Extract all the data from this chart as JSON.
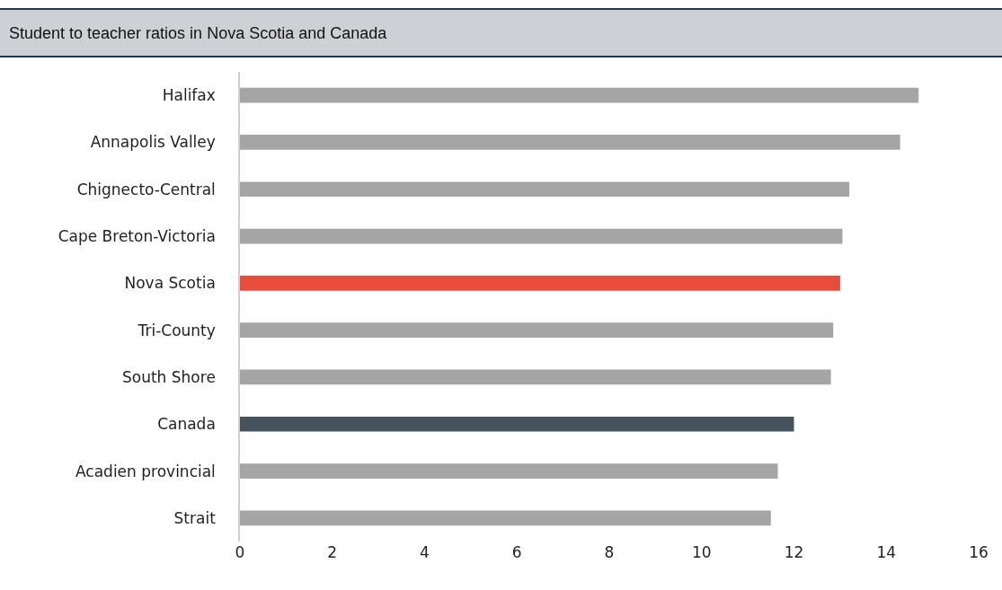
{
  "chart_data": {
    "type": "bar",
    "orientation": "horizontal",
    "title": "Student to teacher ratios in Nova Scotia and Canada",
    "categories": [
      "Halifax",
      "Annapolis Valley",
      "Chignecto-Central",
      "Cape Breton-Victoria",
      "Nova Scotia",
      "Tri-County",
      "South Shore",
      "Canada",
      "Acadien provincial",
      "Strait"
    ],
    "values": [
      14.7,
      14.3,
      13.2,
      13.05,
      13.0,
      12.85,
      12.8,
      12.0,
      11.65,
      11.5
    ],
    "colors": [
      "#a5a5a5",
      "#a5a5a5",
      "#a5a5a5",
      "#a5a5a5",
      "#e84c3d",
      "#a5a5a5",
      "#a5a5a5",
      "#44535e",
      "#a5a5a5",
      "#a5a5a5"
    ],
    "xlim": [
      0,
      16
    ],
    "xticks": [
      0,
      2,
      4,
      6,
      8,
      10,
      12,
      14,
      16
    ]
  }
}
